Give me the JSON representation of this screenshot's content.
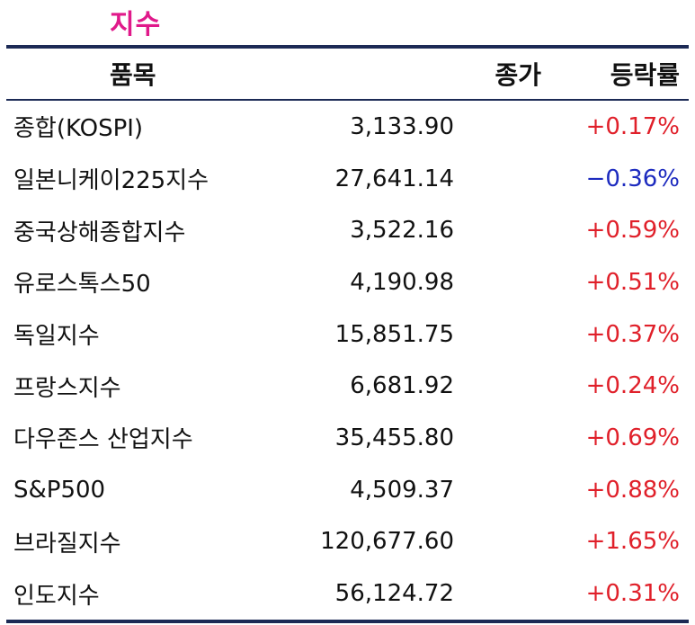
{
  "title": "지수",
  "columns": [
    "품목",
    "종가",
    "등락률"
  ],
  "rows": [
    {
      "item": "종합(KOSPI)",
      "close": "3,133.90",
      "change": "+0.17%",
      "direction": "up"
    },
    {
      "item": "일본니케이225지수",
      "close": "27,641.14",
      "change": "−0.36%",
      "direction": "down"
    },
    {
      "item": "중국상해종합지수",
      "close": "3,522.16",
      "change": "+0.59%",
      "direction": "up"
    },
    {
      "item": "유로스톡스50",
      "close": "4,190.98",
      "change": "+0.51%",
      "direction": "up"
    },
    {
      "item": "독일지수",
      "close": "15,851.75",
      "change": "+0.37%",
      "direction": "up"
    },
    {
      "item": "프랑스지수",
      "close": "6,681.92",
      "change": "+0.24%",
      "direction": "up"
    },
    {
      "item": "다우존스 산업지수",
      "close": "35,455.80",
      "change": "+0.69%",
      "direction": "up"
    },
    {
      "item": "S&P500",
      "close": "4,509.37",
      "change": "+0.88%",
      "direction": "up"
    },
    {
      "item": "브라질지수",
      "close": "120,677.60",
      "change": "+1.65%",
      "direction": "up"
    },
    {
      "item": "인도지수",
      "close": "56,124.72",
      "change": "+0.31%",
      "direction": "up"
    }
  ],
  "colors": {
    "title": "#e0198a",
    "up": "#e0202a",
    "down": "#1d2bbf",
    "rule": "#1c2a55"
  }
}
